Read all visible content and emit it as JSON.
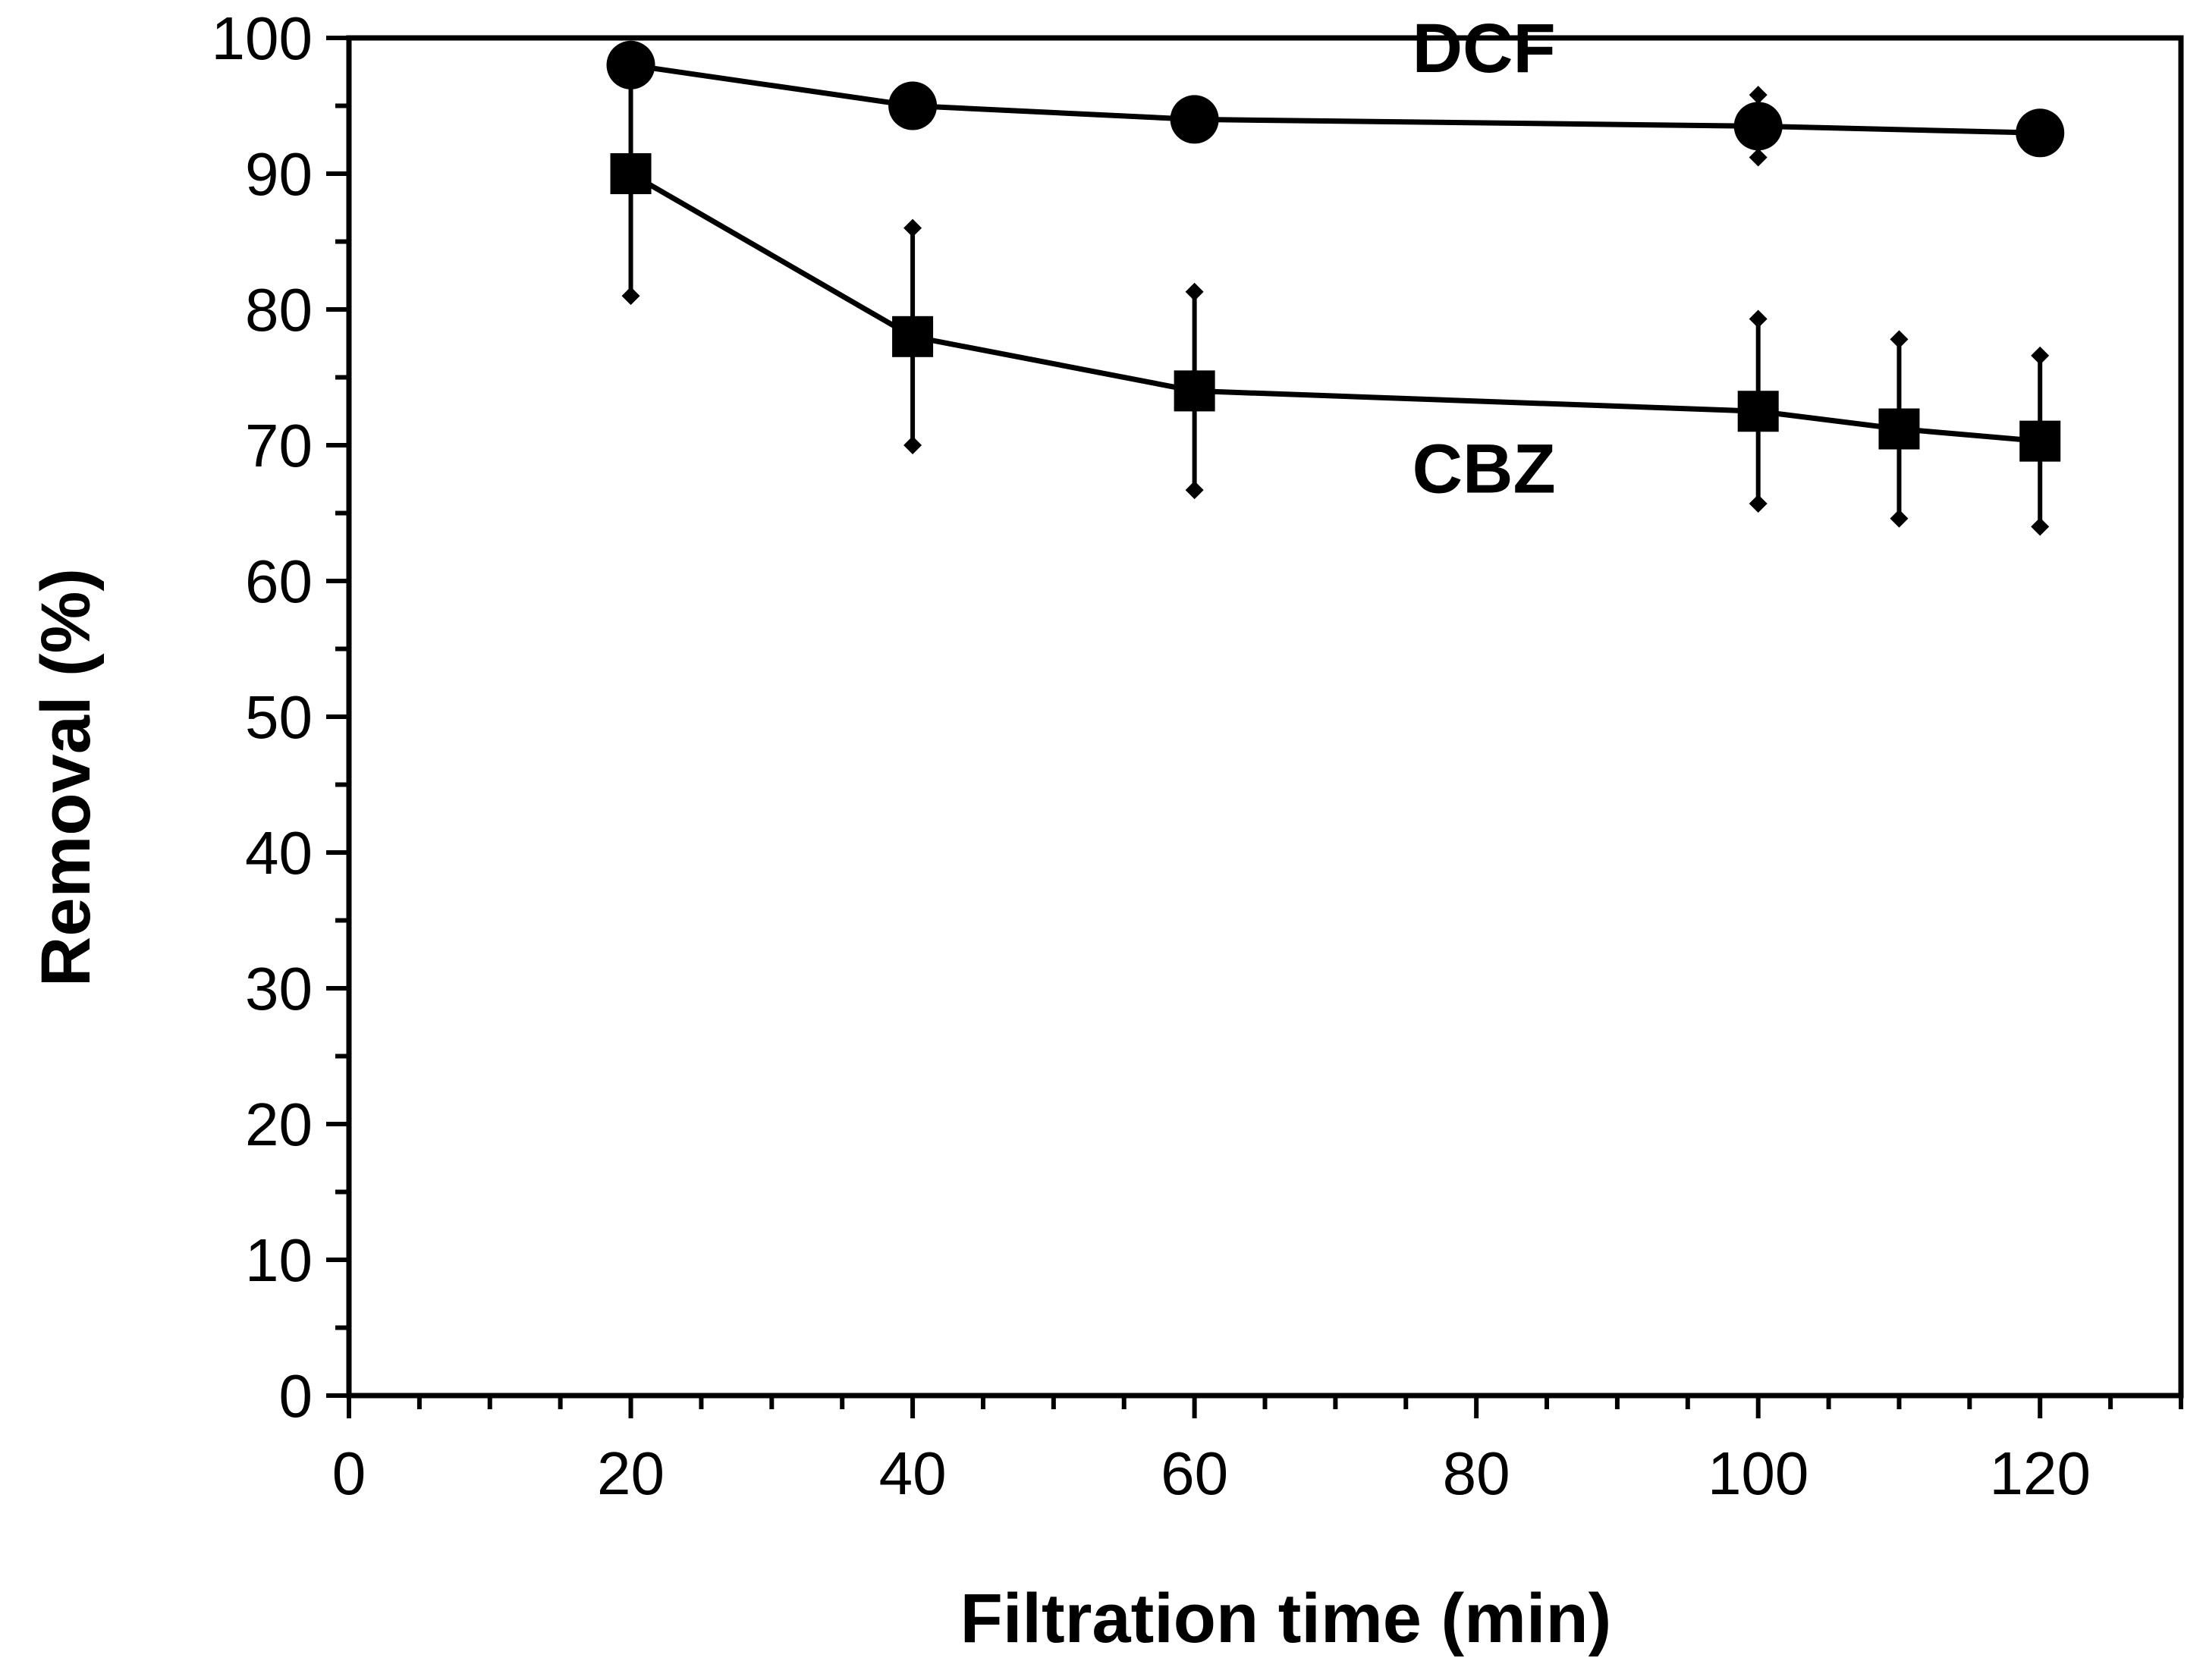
{
  "chart_data": {
    "type": "line",
    "title": "",
    "xlabel": "Filtration time (min)",
    "ylabel": "Removal (%)",
    "xlim": [
      0,
      130
    ],
    "ylim": [
      0,
      100
    ],
    "xticks": [
      0,
      20,
      40,
      60,
      80,
      100,
      120
    ],
    "yticks": [
      0,
      10,
      20,
      30,
      40,
      50,
      60,
      70,
      80,
      90,
      100
    ],
    "x_minor_step": 5,
    "y_minor_step": 5,
    "grid": false,
    "series": [
      {
        "name": "DCF",
        "marker": "circle",
        "label": "DCF",
        "label_anchor": {
          "x": 80,
          "y": 97.5
        },
        "x": [
          20,
          40,
          60,
          100,
          120
        ],
        "values": [
          98,
          95,
          94,
          93.5,
          93
        ],
        "error": [
          0,
          0,
          0,
          2.3,
          0
        ]
      },
      {
        "name": "CBZ",
        "marker": "square",
        "label": "CBZ",
        "label_anchor": {
          "x": 80,
          "y": 66.5
        },
        "x": [
          20,
          40,
          60,
          100,
          110,
          120
        ],
        "values": [
          90,
          78,
          74,
          72.5,
          71.2,
          70.3
        ],
        "error": [
          9,
          8,
          7.3,
          6.8,
          6.6,
          6.3
        ]
      }
    ]
  }
}
